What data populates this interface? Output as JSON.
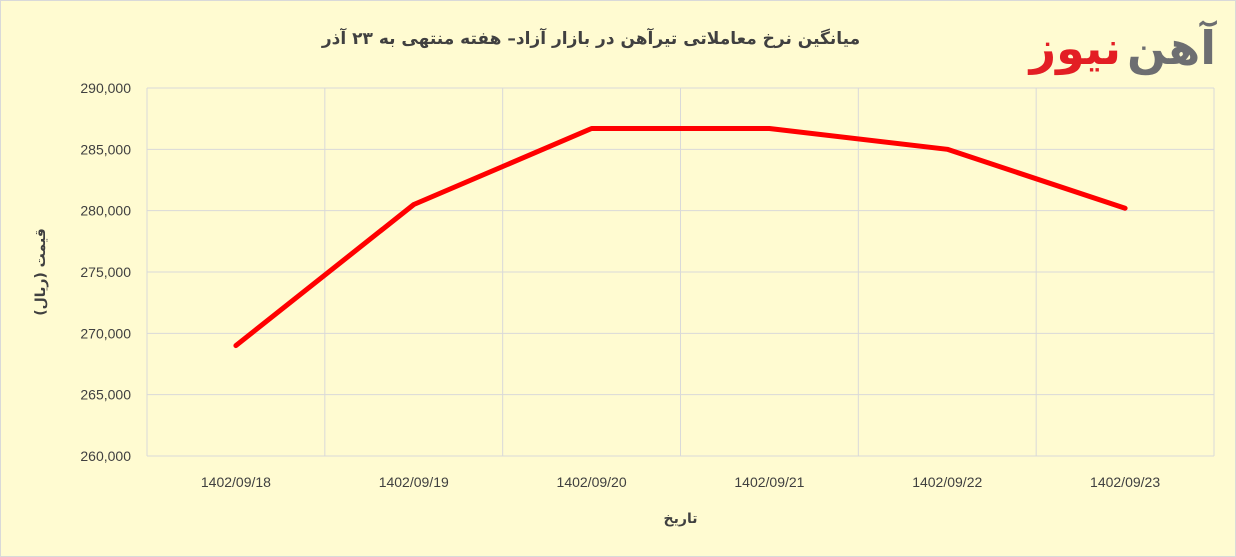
{
  "chart_data": {
    "type": "line",
    "title": "میانگین نرخ معاملاتی تیرآهن در بازار آزاد– هفته منتهی به ۲۳ آذر",
    "xlabel": "تاریخ",
    "ylabel": "قیمت (ریال)",
    "categories": [
      "1402/09/18",
      "1402/09/19",
      "1402/09/20",
      "1402/09/21",
      "1402/09/22",
      "1402/09/23"
    ],
    "series": [
      {
        "values": [
          269000,
          280500,
          286700,
          286700,
          285000,
          280200
        ]
      }
    ],
    "ylim": [
      260000,
      290000
    ],
    "ytick_step": 5000,
    "ytick_labels": [
      "260,000",
      "265,000",
      "270,000",
      "275,000",
      "280,000",
      "285,000",
      "290,000"
    ],
    "grid": true,
    "line_color": "#ff0000",
    "grid_color": "#d9d9d9",
    "background_color": "#fffbd1"
  },
  "logo": {
    "red_text": "نیوز",
    "gray_text": "آهن",
    "red_color": "#e31e24",
    "gray_color": "#6d6e71"
  }
}
